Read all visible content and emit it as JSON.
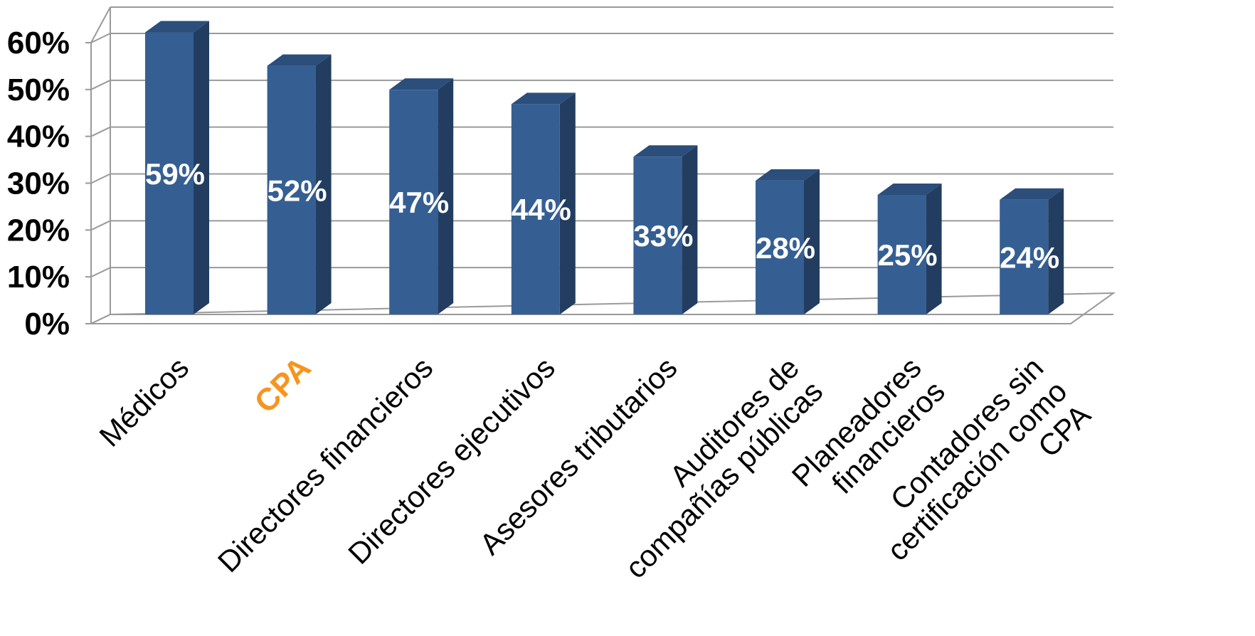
{
  "chart_data": {
    "type": "bar",
    "three_d": true,
    "categories": [
      [
        "Médicos"
      ],
      [
        "CPA"
      ],
      [
        "Directores financieros"
      ],
      [
        "Directores ejecutivos"
      ],
      [
        "Asesores tributarios"
      ],
      [
        "Auditores de",
        "compañías públicas"
      ],
      [
        "Planeadores",
        "financieros"
      ],
      [
        "Contadores sin",
        "certificación como",
        "CPA"
      ]
    ],
    "highlighted_category_index": 1,
    "values": [
      59,
      52,
      47,
      44,
      33,
      28,
      25,
      24
    ],
    "value_labels": [
      "59%",
      "52%",
      "47%",
      "44%",
      "33%",
      "28%",
      "25%",
      "24%"
    ],
    "y_ticks": [
      "0%",
      "10%",
      "20%",
      "30%",
      "40%",
      "50%",
      "60%"
    ],
    "ylim": [
      0,
      60
    ],
    "grid": true,
    "legend": "none",
    "colors": {
      "bar_front": "#355f93",
      "bar_side": "#233d61",
      "bar_top": "#2b4e7b",
      "highlight_label": "#f7941d",
      "grid": "#9a9a9a",
      "data_label": "#ffffff"
    }
  }
}
